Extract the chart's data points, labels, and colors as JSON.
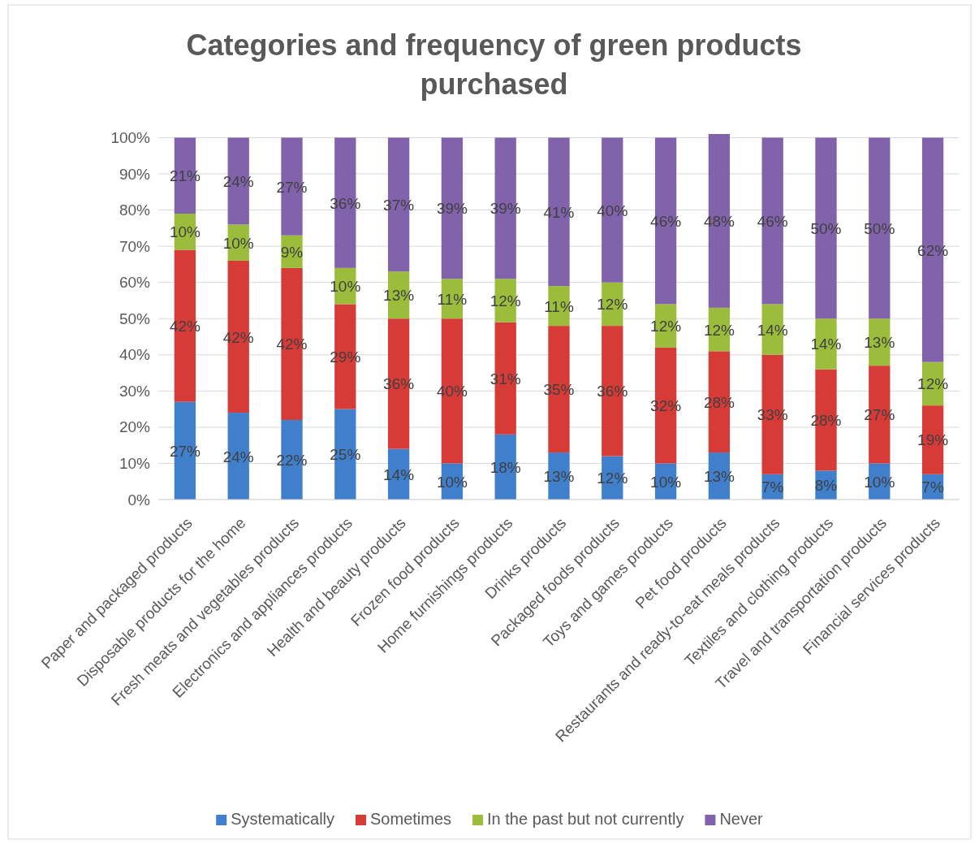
{
  "chart_data": {
    "type": "bar",
    "title": "Categories and frequency of green products purchased",
    "categories": [
      "Paper and packaged products",
      "Disposable products for the home",
      "Fresh meats and vegetables products",
      "Electronics and appliances products",
      "Health and beauty products",
      "Frozen food products",
      "Home furnishings products",
      "Drinks products",
      "Packaged foods products",
      "Toys and games products",
      "Pet food products",
      "Restaurants and ready-to-eat meals products",
      "Textiles and clothing products",
      "Travel and transportation products",
      "Financial services products"
    ],
    "series": [
      {
        "name": "Systematically",
        "color": "#3f7fcc",
        "values": [
          27,
          24,
          22,
          25,
          14,
          10,
          18,
          13,
          12,
          10,
          13,
          7,
          8,
          10,
          7
        ],
        "value_labels": [
          "27%",
          "24%",
          "22%",
          "25%",
          "14%",
          "10%",
          "18%",
          "13%",
          "12%",
          "10%",
          "13%",
          "7%",
          "8%",
          "10%",
          "7%"
        ]
      },
      {
        "name": "Sometimes",
        "color": "#d63b37",
        "values": [
          42,
          42,
          42,
          29,
          36,
          40,
          31,
          35,
          36,
          32,
          28,
          33,
          28,
          27,
          19
        ],
        "value_labels": [
          "42%",
          "42%",
          "42%",
          "29%",
          "36%",
          "40%",
          "31%",
          "35%",
          "36%",
          "32%",
          "28%",
          "33%",
          "28%",
          "27%",
          "19%"
        ]
      },
      {
        "name": "In the past but not currently",
        "color": "#9cbd3c",
        "values": [
          10,
          10,
          9,
          10,
          13,
          11,
          12,
          11,
          12,
          12,
          12,
          14,
          14,
          13,
          12
        ],
        "value_labels": [
          "10%",
          "10%",
          "9%",
          "10%",
          "13%",
          "11%",
          "12%",
          "11%",
          "12%",
          "12%",
          "12%",
          "14%",
          "14%",
          "13%",
          "12%"
        ]
      },
      {
        "name": "Never",
        "color": "#8163ab",
        "values": [
          21,
          24,
          27,
          36,
          37,
          39,
          39,
          41,
          40,
          46,
          48,
          46,
          50,
          50,
          62
        ],
        "value_labels": [
          "21%",
          "24%",
          "27%",
          "36%",
          "37%",
          "39%",
          "39%",
          "41%",
          "40%",
          "46%",
          "48%",
          "46%",
          "50%",
          "50%",
          "62%"
        ]
      }
    ],
    "stacked": true,
    "grid": "y",
    "legend": "bottom",
    "ylim": [
      0,
      101
    ],
    "yticks": [
      {
        "value": 0,
        "label": "0%"
      },
      {
        "value": 10,
        "label": "10%"
      },
      {
        "value": 20,
        "label": "20%"
      },
      {
        "value": 30,
        "label": "30%"
      },
      {
        "value": 40,
        "label": "40%"
      },
      {
        "value": 50,
        "label": "50%"
      },
      {
        "value": 60,
        "label": "60%"
      },
      {
        "value": 70,
        "label": "70%"
      },
      {
        "value": 80,
        "label": "80%"
      },
      {
        "value": 90,
        "label": "90%"
      },
      {
        "value": 100,
        "label": "100%"
      }
    ]
  }
}
